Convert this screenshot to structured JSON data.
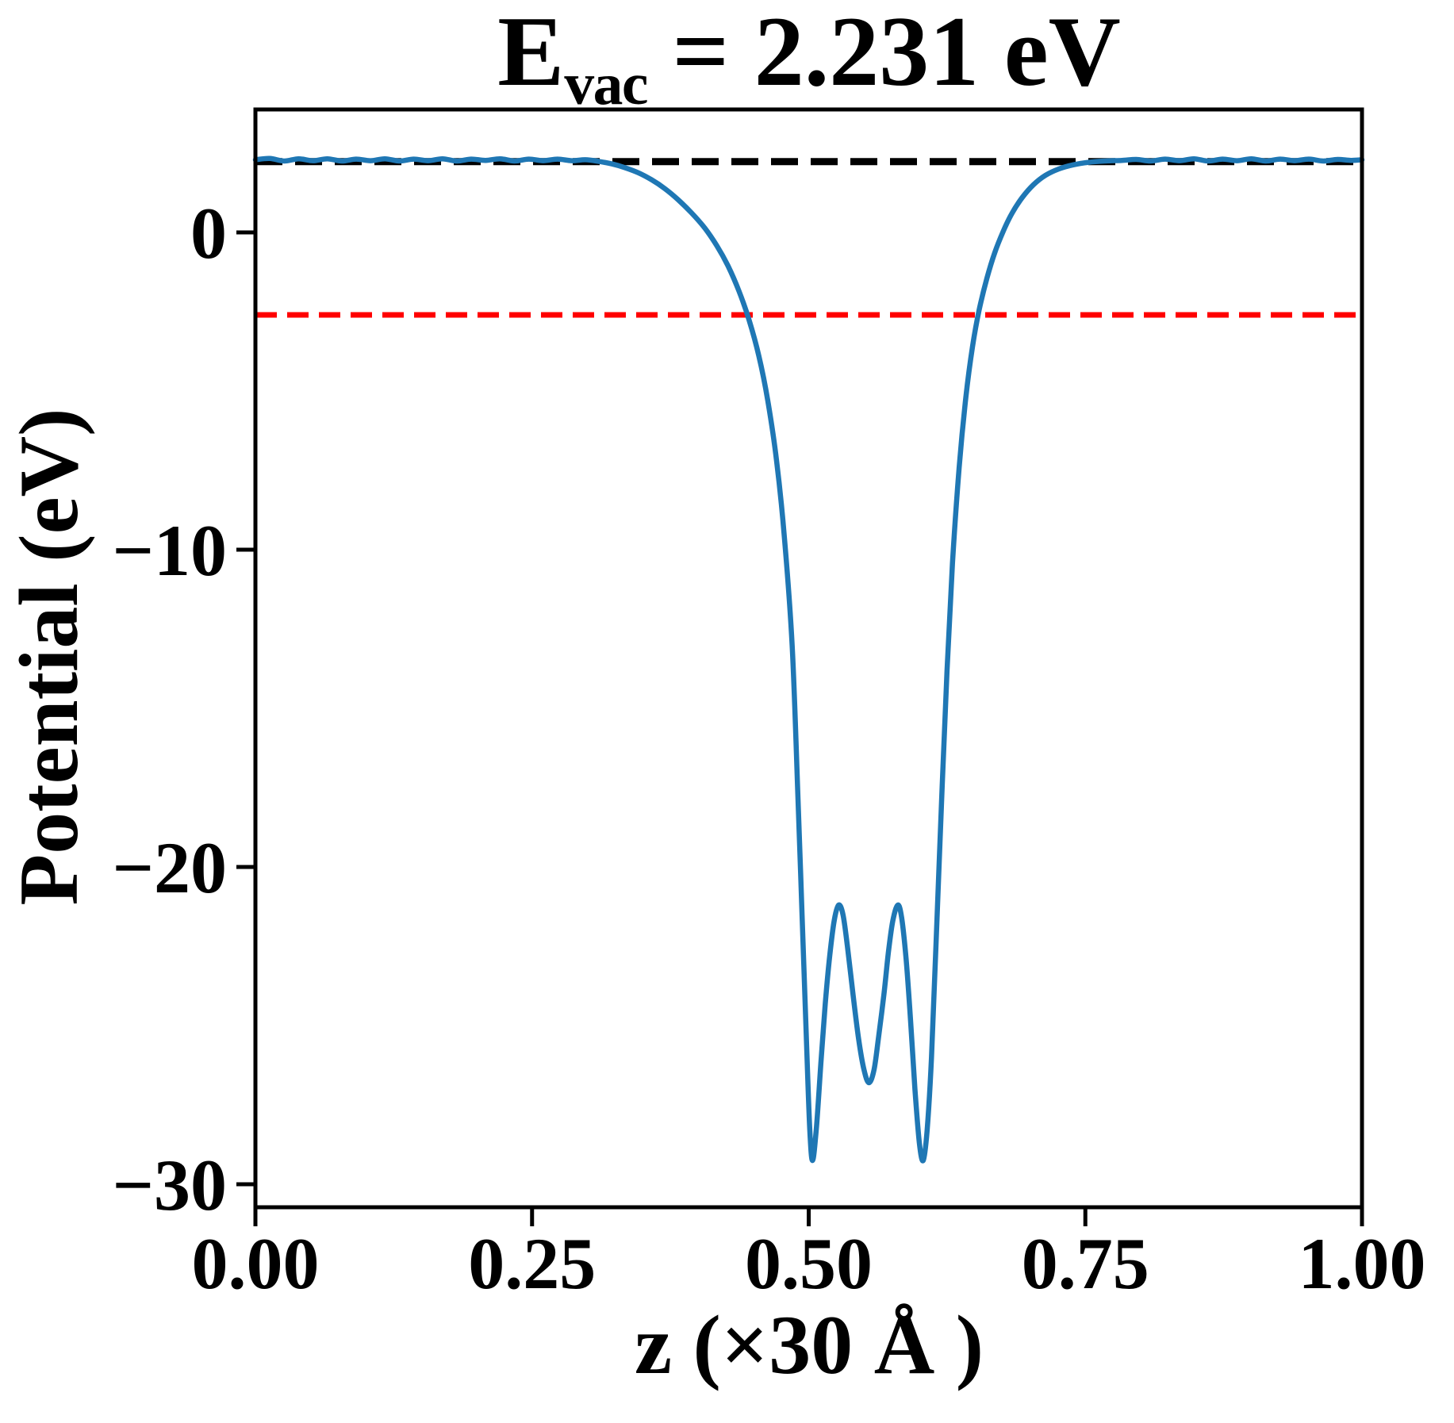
{
  "figure": {
    "title": {
      "base": "E",
      "sub": "vac",
      "tail": " = 2.231 eV"
    }
  },
  "chart_data": {
    "type": "line",
    "title": "E_vac = 2.231 eV",
    "xlabel": "z (×30 Å )",
    "ylabel": "Potential (eV)",
    "xlim": [
      0.0,
      1.0
    ],
    "ylim": [
      -30.725,
      3.875
    ],
    "grid": false,
    "legend": null,
    "xticks": {
      "values": [
        0.0,
        0.25,
        0.5,
        0.75,
        1.0
      ],
      "labels": [
        "0.00",
        "0.25",
        "0.50",
        "0.75",
        "1.00"
      ]
    },
    "yticks": {
      "values": [
        0,
        -10,
        -20,
        -30
      ],
      "labels": [
        "0",
        "−10",
        "−20",
        "−30"
      ]
    },
    "reference_lines": [
      {
        "name": "vacuum-level-line",
        "y": 2.231,
        "color": "#000000",
        "style": "dashed",
        "linewidth": 9
      },
      {
        "name": "red-reference-line",
        "y": -2.6,
        "color": "#ff0000",
        "style": "dashed",
        "linewidth": 7
      }
    ],
    "series": [
      {
        "name": "planar-averaged-potential",
        "color": "#1f77b4",
        "linewidth": 6.5,
        "points": [
          [
            0.0,
            2.29
          ],
          [
            0.013,
            2.33
          ],
          [
            0.026,
            2.25
          ],
          [
            0.039,
            2.32
          ],
          [
            0.052,
            2.26
          ],
          [
            0.065,
            2.32
          ],
          [
            0.078,
            2.25
          ],
          [
            0.091,
            2.31
          ],
          [
            0.104,
            2.26
          ],
          [
            0.117,
            2.32
          ],
          [
            0.13,
            2.25
          ],
          [
            0.143,
            2.31
          ],
          [
            0.156,
            2.26
          ],
          [
            0.169,
            2.32
          ],
          [
            0.182,
            2.25
          ],
          [
            0.195,
            2.31
          ],
          [
            0.208,
            2.27
          ],
          [
            0.221,
            2.32
          ],
          [
            0.234,
            2.25
          ],
          [
            0.247,
            2.31
          ],
          [
            0.26,
            2.26
          ],
          [
            0.273,
            2.31
          ],
          [
            0.286,
            2.26
          ],
          [
            0.298,
            2.29
          ],
          [
            0.31,
            2.24
          ],
          [
            0.322,
            2.16
          ],
          [
            0.334,
            2.04
          ],
          [
            0.346,
            1.88
          ],
          [
            0.358,
            1.66
          ],
          [
            0.37,
            1.38
          ],
          [
            0.382,
            1.03
          ],
          [
            0.394,
            0.62
          ],
          [
            0.406,
            0.14
          ],
          [
            0.417,
            -0.42
          ],
          [
            0.427,
            -1.05
          ],
          [
            0.437,
            -1.85
          ],
          [
            0.446,
            -2.75
          ],
          [
            0.455,
            -3.9
          ],
          [
            0.463,
            -5.3
          ],
          [
            0.471,
            -7.2
          ],
          [
            0.478,
            -9.6
          ],
          [
            0.485,
            -13.0
          ],
          [
            0.49,
            -17.5
          ],
          [
            0.494,
            -21.5
          ],
          [
            0.498,
            -25.5
          ],
          [
            0.501,
            -28.3
          ],
          [
            0.5035,
            -29.25
          ],
          [
            0.507,
            -28.2
          ],
          [
            0.511,
            -26.2
          ],
          [
            0.515,
            -24.3
          ],
          [
            0.519,
            -22.8
          ],
          [
            0.523,
            -21.7
          ],
          [
            0.527,
            -21.2
          ],
          [
            0.531,
            -21.5
          ],
          [
            0.535,
            -22.5
          ],
          [
            0.54,
            -24.0
          ],
          [
            0.545,
            -25.4
          ],
          [
            0.55,
            -26.4
          ],
          [
            0.5545,
            -26.8
          ],
          [
            0.559,
            -26.4
          ],
          [
            0.563,
            -25.4
          ],
          [
            0.568,
            -24.0
          ],
          [
            0.572,
            -22.7
          ],
          [
            0.576,
            -21.7
          ],
          [
            0.5805,
            -21.2
          ],
          [
            0.584,
            -21.6
          ],
          [
            0.588,
            -22.9
          ],
          [
            0.592,
            -24.8
          ],
          [
            0.596,
            -27.0
          ],
          [
            0.6,
            -28.7
          ],
          [
            0.6035,
            -29.25
          ],
          [
            0.607,
            -28.3
          ],
          [
            0.611,
            -26.0
          ],
          [
            0.615,
            -22.5
          ],
          [
            0.62,
            -18.0
          ],
          [
            0.625,
            -13.8
          ],
          [
            0.63,
            -10.4
          ],
          [
            0.636,
            -7.4
          ],
          [
            0.642,
            -5.2
          ],
          [
            0.648,
            -3.6
          ],
          [
            0.654,
            -2.45
          ],
          [
            0.661,
            -1.45
          ],
          [
            0.668,
            -0.65
          ],
          [
            0.676,
            0.05
          ],
          [
            0.684,
            0.62
          ],
          [
            0.693,
            1.1
          ],
          [
            0.703,
            1.5
          ],
          [
            0.714,
            1.8
          ],
          [
            0.726,
            2.0
          ],
          [
            0.739,
            2.13
          ],
          [
            0.753,
            2.21
          ],
          [
            0.768,
            2.25
          ],
          [
            0.783,
            2.27
          ],
          [
            0.796,
            2.3
          ],
          [
            0.809,
            2.25
          ],
          [
            0.822,
            2.31
          ],
          [
            0.835,
            2.26
          ],
          [
            0.848,
            2.32
          ],
          [
            0.861,
            2.25
          ],
          [
            0.874,
            2.31
          ],
          [
            0.887,
            2.26
          ],
          [
            0.9,
            2.32
          ],
          [
            0.913,
            2.25
          ],
          [
            0.926,
            2.31
          ],
          [
            0.939,
            2.26
          ],
          [
            0.952,
            2.31
          ],
          [
            0.965,
            2.25
          ],
          [
            0.978,
            2.3
          ],
          [
            0.99,
            2.27
          ],
          [
            1.0,
            2.29
          ]
        ]
      }
    ]
  }
}
